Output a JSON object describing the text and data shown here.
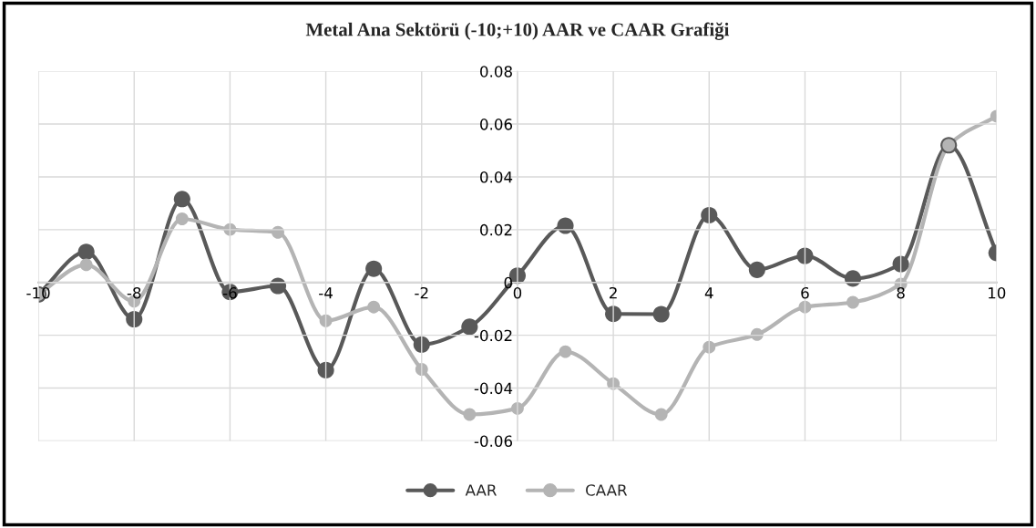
{
  "chart_data": {
    "type": "line",
    "title": "Metal Ana Sektörü (-10;+10) AAR ve CAAR Grafiği",
    "x": [
      -10,
      -9,
      -8,
      -7,
      -6,
      -5,
      -4,
      -3,
      -2,
      -1,
      0,
      1,
      2,
      3,
      4,
      5,
      6,
      7,
      8,
      9,
      10
    ],
    "series": [
      {
        "name": "AAR",
        "color": "#595959",
        "values": [
          -0.0045,
          0.0116,
          -0.0139,
          0.0316,
          -0.0036,
          -0.0013,
          -0.0332,
          0.0052,
          -0.0235,
          -0.0168,
          0.0026,
          0.0215,
          -0.0119,
          -0.012,
          0.0255,
          0.0048,
          0.0101,
          0.0015,
          0.007,
          0.052,
          0.0112
        ]
      },
      {
        "name": "CAAR",
        "color": "#b4b4b4",
        "values": [
          -0.0045,
          0.0067,
          -0.0071,
          0.0241,
          0.0201,
          0.019,
          -0.0145,
          -0.0093,
          -0.0329,
          -0.05,
          -0.0477,
          -0.0262,
          -0.0383,
          -0.05,
          -0.0245,
          -0.0197,
          -0.0093,
          -0.0075,
          -0.0006,
          0.052,
          0.063
        ]
      }
    ],
    "xlim": [
      -10,
      10
    ],
    "xticks": [
      -10,
      -8,
      -6,
      -4,
      -2,
      0,
      2,
      4,
      6,
      8,
      10
    ],
    "ylim": [
      -0.06,
      0.08
    ],
    "yticks": [
      {
        "value": -0.06,
        "label": "-0.06"
      },
      {
        "value": -0.04,
        "label": "-0.04"
      },
      {
        "value": -0.02,
        "label": "-0.02"
      },
      0,
      0.02,
      0.04,
      0.06,
      0.08
    ],
    "grid": true,
    "legend": "bottom",
    "marker": "circle",
    "line_style": "solid"
  }
}
